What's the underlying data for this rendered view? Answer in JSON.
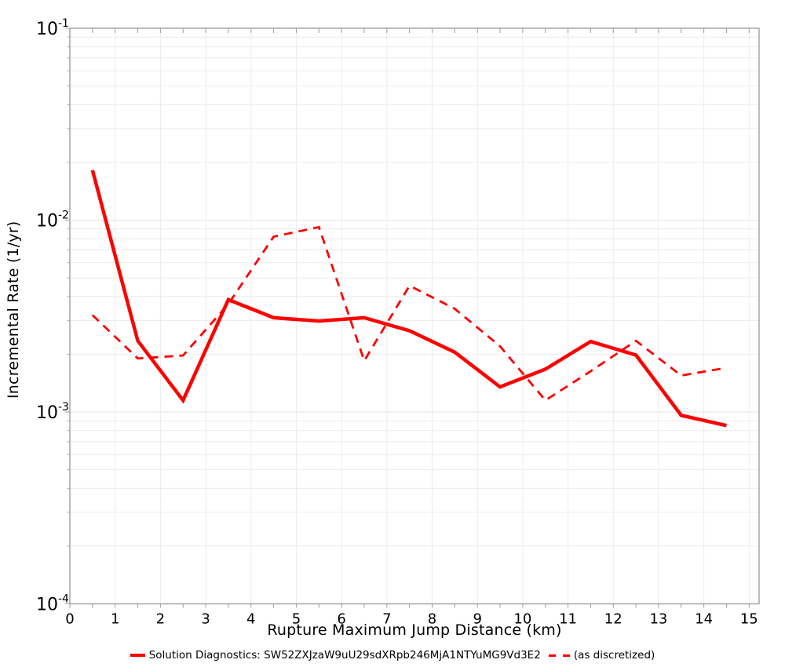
{
  "chart_data": {
    "type": "line",
    "title": "",
    "xlabel": "Rupture Maximum Jump Distance (km)",
    "ylabel": "Incremental Rate (1/yr)",
    "xlim": [
      0,
      15.22
    ],
    "ylim": [
      0.0001,
      0.1
    ],
    "yscale": "log",
    "grid": true,
    "legend_position": "bottom",
    "x_ticks": [
      0,
      1,
      2,
      3,
      4,
      5,
      6,
      7,
      8,
      9,
      10,
      11,
      12,
      13,
      14,
      15
    ],
    "x_minor_tick_step": 0.5,
    "y_tick_exponents": [
      "-1",
      "-2",
      "-3",
      "-4"
    ],
    "x": [
      0.5,
      1.5,
      2.5,
      3.5,
      4.5,
      5.5,
      6.5,
      7.5,
      8.5,
      9.5,
      10.5,
      11.5,
      12.5,
      13.5,
      14.5
    ],
    "series": [
      {
        "name": "Solution Diagnostics: SW52ZXJzaW9uU29sdXRpb246MjA1NTYuMG9Vd3E2",
        "style": "solid",
        "color": "#ff0000",
        "width": 4.5,
        "values": [
          0.0182,
          0.00235,
          0.00115,
          0.00385,
          0.0031,
          0.00298,
          0.0031,
          0.00265,
          0.00205,
          0.00135,
          0.00167,
          0.00233,
          0.00198,
          0.00096,
          0.00085
        ]
      },
      {
        "name": "(as discretized)",
        "style": "dashed",
        "color": "#ff0000",
        "width": 2.8,
        "values": [
          0.0032,
          0.0019,
          0.00197,
          0.00365,
          0.0082,
          0.0092,
          0.00185,
          0.00455,
          0.00345,
          0.0022,
          0.00115,
          0.00163,
          0.00235,
          0.00155,
          0.0017
        ]
      }
    ]
  },
  "colors": {
    "grid_minor": "#ececec",
    "grid_major": "#e3e3e3",
    "frame": "#a6a6a6",
    "tick": "#9b9b9b",
    "text": "#000000"
  }
}
